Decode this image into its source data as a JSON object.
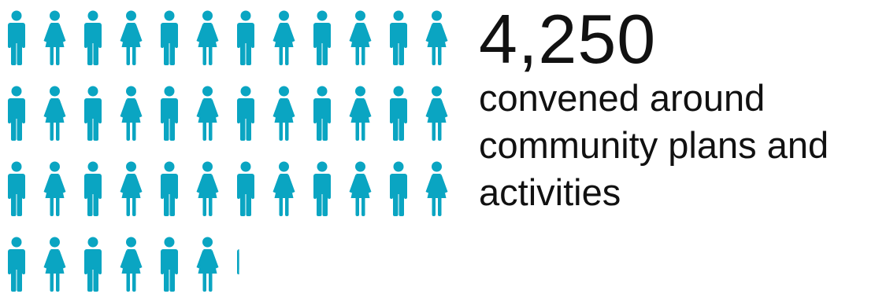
{
  "infographic": {
    "value": "4,250",
    "description": "convened around community plans and activities"
  },
  "pictogram": {
    "icon_color": "#0aa5c2",
    "icon_pattern": [
      "man-icon",
      "woman-icon"
    ],
    "per_row": 12,
    "rows": 4,
    "filled_icons": 6.2
  }
}
